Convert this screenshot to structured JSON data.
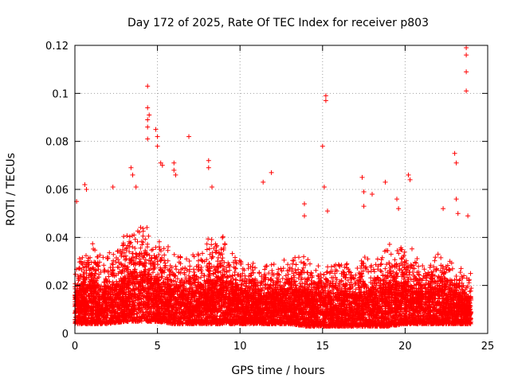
{
  "chart_data": {
    "type": "scatter",
    "title": "Day 172 of 2025, Rate Of TEC Index for receiver p803",
    "xlabel": "GPS time / hours",
    "ylabel": "ROTI / TECUs",
    "xlim": [
      0,
      25
    ],
    "ylim": [
      0,
      0.12
    ],
    "xticks": [
      0,
      5,
      10,
      15,
      20,
      25
    ],
    "xtick_labels": [
      "0",
      "5",
      "10",
      "15",
      "20",
      "25"
    ],
    "yticks": [
      0,
      0.02,
      0.04,
      0.06,
      0.08,
      0.1,
      0.12
    ],
    "ytick_labels": [
      "0",
      "0.02",
      "0.04",
      "0.06",
      "0.08",
      "0.1",
      "0.12"
    ],
    "grid": true,
    "marker": "+",
    "color": "#ff0000",
    "series": [
      {
        "name": "ROTI",
        "notable_points": [
          {
            "x": 0.1,
            "y": 0.055
          },
          {
            "x": 0.6,
            "y": 0.062
          },
          {
            "x": 0.7,
            "y": 0.06
          },
          {
            "x": 2.3,
            "y": 0.061
          },
          {
            "x": 3.4,
            "y": 0.069
          },
          {
            "x": 3.5,
            "y": 0.066
          },
          {
            "x": 3.7,
            "y": 0.061
          },
          {
            "x": 4.4,
            "y": 0.103
          },
          {
            "x": 4.4,
            "y": 0.094
          },
          {
            "x": 4.4,
            "y": 0.089
          },
          {
            "x": 4.4,
            "y": 0.086
          },
          {
            "x": 4.4,
            "y": 0.081
          },
          {
            "x": 4.5,
            "y": 0.091
          },
          {
            "x": 4.9,
            "y": 0.085
          },
          {
            "x": 5.0,
            "y": 0.082
          },
          {
            "x": 5.0,
            "y": 0.078
          },
          {
            "x": 5.2,
            "y": 0.071
          },
          {
            "x": 5.3,
            "y": 0.07
          },
          {
            "x": 6.0,
            "y": 0.071
          },
          {
            "x": 6.0,
            "y": 0.068
          },
          {
            "x": 6.1,
            "y": 0.066
          },
          {
            "x": 6.9,
            "y": 0.082
          },
          {
            "x": 8.1,
            "y": 0.072
          },
          {
            "x": 8.1,
            "y": 0.069
          },
          {
            "x": 8.3,
            "y": 0.061
          },
          {
            "x": 11.4,
            "y": 0.063
          },
          {
            "x": 11.9,
            "y": 0.067
          },
          {
            "x": 13.9,
            "y": 0.054
          },
          {
            "x": 13.9,
            "y": 0.049
          },
          {
            "x": 15.0,
            "y": 0.078
          },
          {
            "x": 15.1,
            "y": 0.061
          },
          {
            "x": 15.2,
            "y": 0.099
          },
          {
            "x": 15.2,
            "y": 0.097
          },
          {
            "x": 15.3,
            "y": 0.051
          },
          {
            "x": 17.4,
            "y": 0.065
          },
          {
            "x": 17.5,
            "y": 0.059
          },
          {
            "x": 17.5,
            "y": 0.053
          },
          {
            "x": 18.0,
            "y": 0.058
          },
          {
            "x": 18.8,
            "y": 0.063
          },
          {
            "x": 19.5,
            "y": 0.056
          },
          {
            "x": 19.6,
            "y": 0.052
          },
          {
            "x": 20.2,
            "y": 0.066
          },
          {
            "x": 20.3,
            "y": 0.064
          },
          {
            "x": 22.3,
            "y": 0.052
          },
          {
            "x": 23.0,
            "y": 0.075
          },
          {
            "x": 23.1,
            "y": 0.071
          },
          {
            "x": 23.1,
            "y": 0.056
          },
          {
            "x": 23.2,
            "y": 0.05
          },
          {
            "x": 23.7,
            "y": 0.119
          },
          {
            "x": 23.7,
            "y": 0.116
          },
          {
            "x": 23.7,
            "y": 0.109
          },
          {
            "x": 23.7,
            "y": 0.101
          },
          {
            "x": 23.8,
            "y": 0.049
          }
        ],
        "dense_band": [
          {
            "x": 0,
            "ymin": 0.004,
            "ymax": 0.032
          },
          {
            "x": 1,
            "ymin": 0.004,
            "ymax": 0.038
          },
          {
            "x": 2,
            "ymin": 0.004,
            "ymax": 0.035
          },
          {
            "x": 3,
            "ymin": 0.005,
            "ymax": 0.042
          },
          {
            "x": 4,
            "ymin": 0.005,
            "ymax": 0.05
          },
          {
            "x": 5,
            "ymin": 0.005,
            "ymax": 0.04
          },
          {
            "x": 6,
            "ymin": 0.004,
            "ymax": 0.036
          },
          {
            "x": 7,
            "ymin": 0.004,
            "ymax": 0.033
          },
          {
            "x": 8,
            "ymin": 0.004,
            "ymax": 0.04
          },
          {
            "x": 9,
            "ymin": 0.004,
            "ymax": 0.045
          },
          {
            "x": 10,
            "ymin": 0.004,
            "ymax": 0.033
          },
          {
            "x": 11,
            "ymin": 0.004,
            "ymax": 0.03
          },
          {
            "x": 12,
            "ymin": 0.004,
            "ymax": 0.03
          },
          {
            "x": 13,
            "ymin": 0.004,
            "ymax": 0.033
          },
          {
            "x": 14,
            "ymin": 0.003,
            "ymax": 0.035
          },
          {
            "x": 15,
            "ymin": 0.003,
            "ymax": 0.03
          },
          {
            "x": 16,
            "ymin": 0.003,
            "ymax": 0.034
          },
          {
            "x": 17,
            "ymin": 0.003,
            "ymax": 0.03
          },
          {
            "x": 18,
            "ymin": 0.003,
            "ymax": 0.035
          },
          {
            "x": 19,
            "ymin": 0.003,
            "ymax": 0.04
          },
          {
            "x": 20,
            "ymin": 0.004,
            "ymax": 0.038
          },
          {
            "x": 21,
            "ymin": 0.004,
            "ymax": 0.032
          },
          {
            "x": 22,
            "ymin": 0.004,
            "ymax": 0.035
          },
          {
            "x": 23,
            "ymin": 0.004,
            "ymax": 0.03
          },
          {
            "x": 24,
            "ymin": 0.004,
            "ymax": 0.026
          }
        ]
      }
    ]
  }
}
